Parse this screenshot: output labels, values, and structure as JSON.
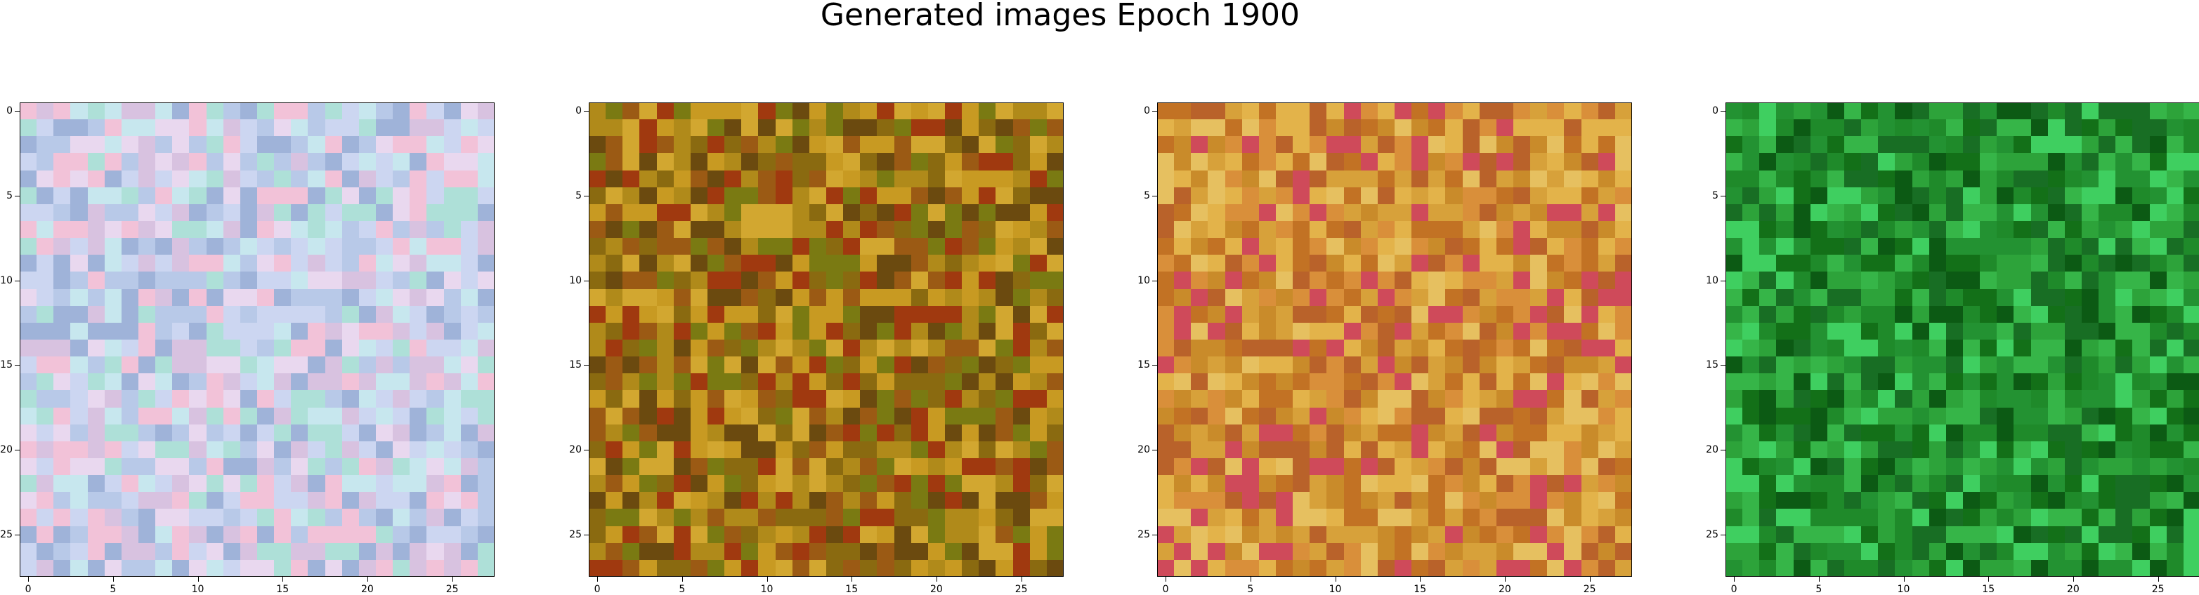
{
  "figure": {
    "title": "Generated images Epoch 1900"
  },
  "panels": [
    {
      "name": "generated-image-1",
      "palette": "pastel-multicolor",
      "colors": [
        "#b8c9e8",
        "#d8c2e0",
        "#c7e7ee",
        "#9fb3d9",
        "#e9d8ef",
        "#f2c2d8",
        "#aee0d8",
        "#ccd6f1"
      ]
    },
    {
      "name": "generated-image-2",
      "palette": "ochre-mustard",
      "colors": [
        "#b08a1a",
        "#8a6a10",
        "#c89a22",
        "#6b4a0f",
        "#d2a730",
        "#9b5a14",
        "#7a7a12",
        "#a0390f"
      ]
    },
    {
      "name": "generated-image-3",
      "palette": "orange-gold",
      "colors": [
        "#d7a13a",
        "#c98b2a",
        "#e3b34a",
        "#c27224",
        "#e6c060",
        "#b9622a",
        "#d98f3a",
        "#cf4a5a"
      ]
    },
    {
      "name": "generated-image-4",
      "palette": "green",
      "colors": [
        "#1f8a2a",
        "#2da33a",
        "#137018",
        "#36b548",
        "#0c5a14",
        "#3fcf60",
        "#239232",
        "#186e24"
      ]
    }
  ],
  "axes": {
    "x_ticks": [
      "0",
      "5",
      "10",
      "15",
      "20",
      "25"
    ],
    "y_ticks": [
      "0",
      "5",
      "10",
      "15",
      "20",
      "25"
    ]
  }
}
